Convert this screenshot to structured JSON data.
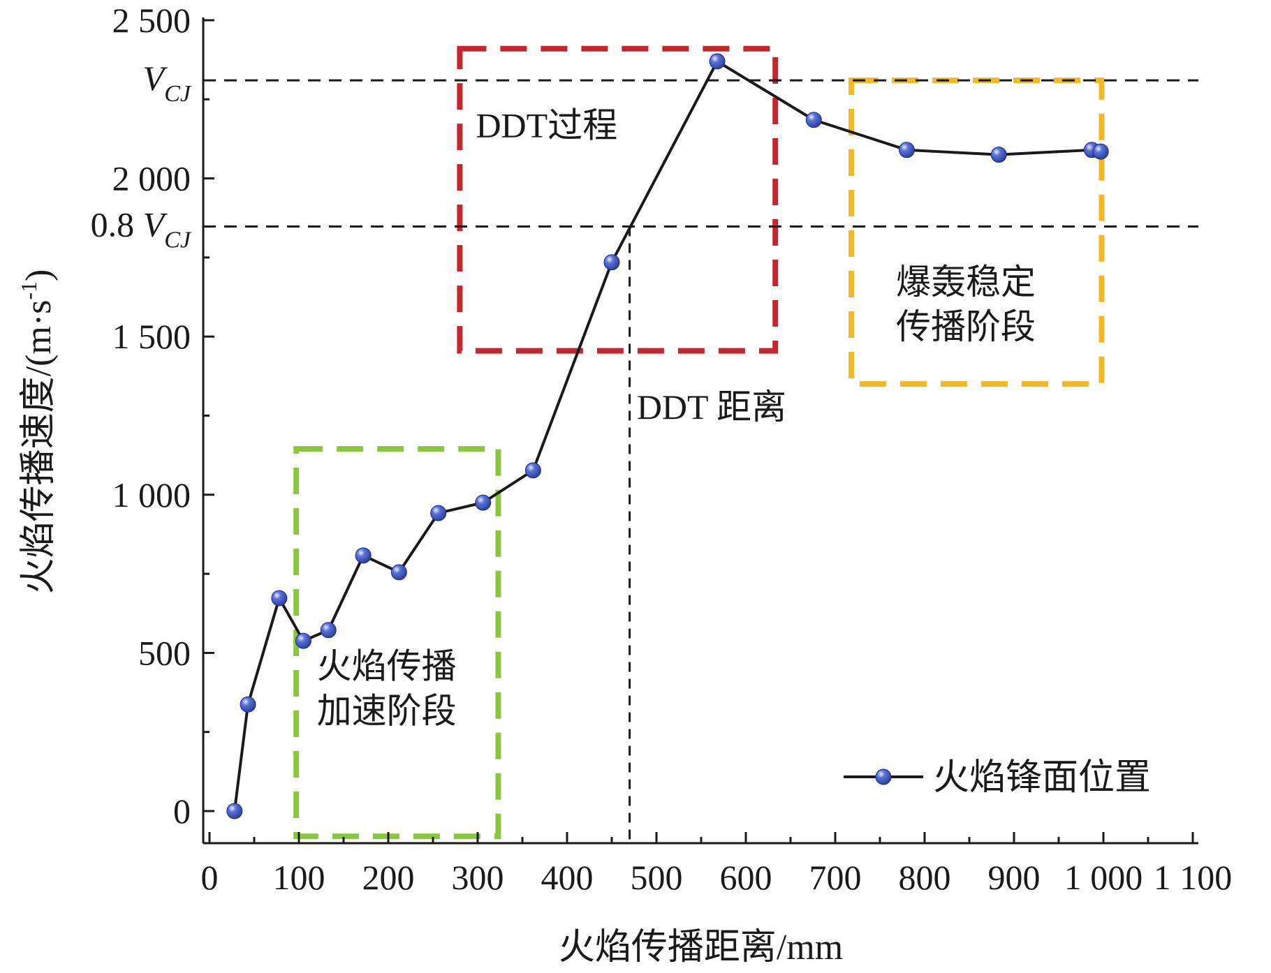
{
  "chart_data": {
    "type": "line",
    "xlabel": "火焰传播距离/mm",
    "ylabel": "火焰传播速度/(m·s",
    "ylabel_sup": "-1",
    "ylabel_end": ")",
    "xlim": [
      0,
      1100
    ],
    "ylim": [
      0,
      2500
    ],
    "x_ticks": [
      0,
      100,
      200,
      300,
      400,
      500,
      600,
      700,
      800,
      900,
      1000,
      1100
    ],
    "x_tick_labels": [
      "0",
      "100",
      "200",
      "300",
      "400",
      "500",
      "600",
      "700",
      "800",
      "900",
      "1 000",
      "1 100"
    ],
    "y_ticks": [
      0,
      500,
      1000,
      1500,
      2000,
      2500
    ],
    "y_tick_labels": [
      "0",
      "500",
      "1 000",
      "1 500",
      "2 000",
      "2 500"
    ],
    "grid": false,
    "legend_position": "bottom-right",
    "series": [
      {
        "name": "火焰锋面位置",
        "color": "#1a1a1a",
        "marker_color": "#2b3f9e",
        "x": [
          28,
          43,
          78,
          105,
          133,
          172,
          212,
          256,
          306,
          362,
          450,
          568,
          676,
          780,
          883,
          987,
          997
        ],
        "y": [
          0,
          337,
          673,
          538,
          572,
          808,
          755,
          942,
          975,
          1077,
          1735,
          2370,
          2185,
          2090,
          2075,
          2090,
          2085
        ]
      }
    ],
    "reference_lines": [
      {
        "axis": "y",
        "value": 2310,
        "label": "V",
        "sub": "CJ",
        "style": "dashed"
      },
      {
        "axis": "y",
        "value": 1848,
        "label": "0.8 V",
        "sub": "CJ",
        "style": "dashed"
      },
      {
        "axis": "x",
        "value": 470,
        "y_from": 1848,
        "y_to": 0,
        "style": "dashed"
      }
    ],
    "annotations": [
      {
        "text": "DDT 距离",
        "x": 478,
        "y": 1240
      }
    ],
    "regions": [
      {
        "lines": [
          "火焰传播",
          "加速阶段"
        ],
        "x_range": [
          97,
          323
        ],
        "y_range": [
          -80,
          1145
        ],
        "color": "#8cc63f",
        "label_at": [
          120,
          420
        ]
      },
      {
        "lines": [
          "DDT过程"
        ],
        "x_range": [
          280,
          633
        ],
        "y_range": [
          1455,
          2410
        ],
        "color": "#c1272d",
        "label_at": [
          298,
          2130
        ]
      },
      {
        "lines": [
          "爆轰稳定",
          "传播阶段"
        ],
        "x_range": [
          718,
          998
        ],
        "y_range": [
          1350,
          2310
        ],
        "color": "#f2b826",
        "label_at": [
          768,
          1635
        ]
      }
    ]
  }
}
